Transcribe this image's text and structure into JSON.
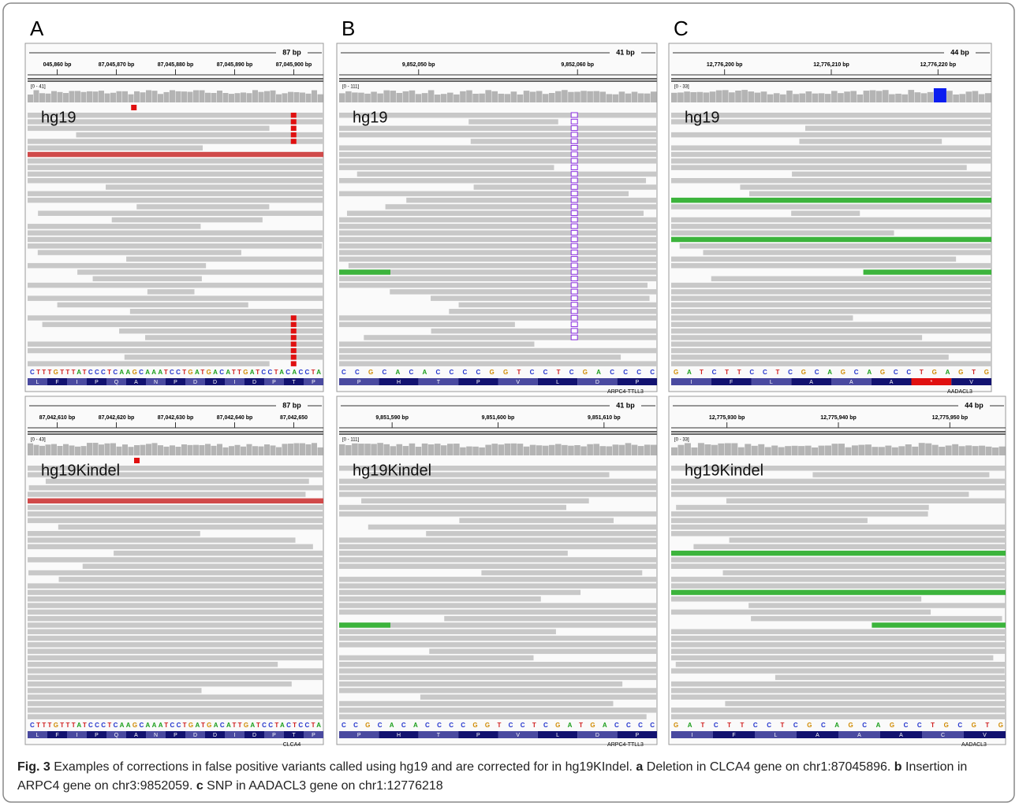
{
  "panels": [
    {
      "letter": "A",
      "views": [
        {
          "span": "87 bp",
          "ticks": [
            "045,860 bp",
            "87,045,870 bp",
            "87,045,880 bp",
            "87,045,890 bp",
            "87,045,900 bp"
          ],
          "range": "[0 - 41]",
          "genome": "hg19",
          "sequence": "CTTTGTTTATCCCTCAAGCAAATCCTGATGACATTGATCCTACACCTA",
          "aminoacids": [
            "L",
            "F",
            "I",
            "P",
            "Q",
            "A",
            "N",
            "P",
            "D",
            "D",
            "I",
            "D",
            "P",
            "T",
            "P"
          ]
        },
        {
          "span": "87 bp",
          "ticks": [
            "87,042,610 bp",
            "87,042,620 bp",
            "87,042,630 bp",
            "87,042,640 bp",
            "87,042,650"
          ],
          "range": "[0 - 43]",
          "genome": "hg19Kindel",
          "sequence": "CTTTGTTTATCCCTCAAGCAAATCCTGATGACATTGATCCTACTCCTA",
          "aminoacids": [
            "L",
            "F",
            "I",
            "P",
            "Q",
            "A",
            "N",
            "P",
            "D",
            "D",
            "I",
            "D",
            "P",
            "T",
            "P"
          ],
          "gene": "CLCA4"
        }
      ]
    },
    {
      "letter": "B",
      "views": [
        {
          "span": "41 bp",
          "ticks": [
            "9,852,050 bp",
            "9,852,060 bp"
          ],
          "range": "[0 - 111]",
          "genome": "hg19",
          "sequence": "CCGCACACCCCGGTCCTCGACCCC",
          "aminoacids": [
            "P",
            "H",
            "T",
            "P",
            "V",
            "L",
            "D",
            "P"
          ],
          "gene": "ARPC4-TTLL3"
        },
        {
          "span": "41 bp",
          "ticks": [
            "9,851,590 bp",
            "9,851,600 bp",
            "9,851,610 bp"
          ],
          "range": "[0 - 111]",
          "genome": "hg19Kindel",
          "sequence": "CCGCACACCCCGGTCCTCGATGACCCC",
          "aminoacids": [
            "P",
            "H",
            "T",
            "P",
            "V",
            "L",
            "D",
            "P"
          ],
          "gene": "ARPC4-TTLL3"
        }
      ]
    },
    {
      "letter": "C",
      "views": [
        {
          "span": "44 bp",
          "ticks": [
            "12,776,200 bp",
            "12,776,210 bp",
            "12,776,220 bp"
          ],
          "range": "[0 - 33]",
          "genome": "hg19",
          "sequence": "GATCTTCCTCGCAGCAGCCTGAGTG",
          "aminoacids": [
            "I",
            "F",
            "L",
            "A",
            "A",
            "A",
            "*",
            "V"
          ],
          "gene": "AADACL3"
        },
        {
          "span": "44 bp",
          "ticks": [
            "12,775,930 bp",
            "12,775,940 bp",
            "12,775,950 bp"
          ],
          "range": "[0 - 33]",
          "genome": "hg19Kindel",
          "sequence": "GATCTTCCTCGCAGCAGCCTGCGTG",
          "aminoacids": [
            "I",
            "F",
            "L",
            "A",
            "A",
            "A",
            "C",
            "V"
          ],
          "gene": "AADACL3"
        }
      ]
    }
  ],
  "caption": {
    "figure": "Fig. 3",
    "text": " Examples of corrections in false positive variants called using hg19 and are corrected for in hg19KIndel. ",
    "parts": [
      {
        "label": "a",
        "text": " Deletion in CLCA4 gene on chr1:87045896. "
      },
      {
        "label": "b",
        "text": " Insertion in ARPC4 gene on chr3:9852059. "
      },
      {
        "label": "c",
        "text": " SNP in AADACL3 gene on chr1:12776218"
      }
    ]
  }
}
